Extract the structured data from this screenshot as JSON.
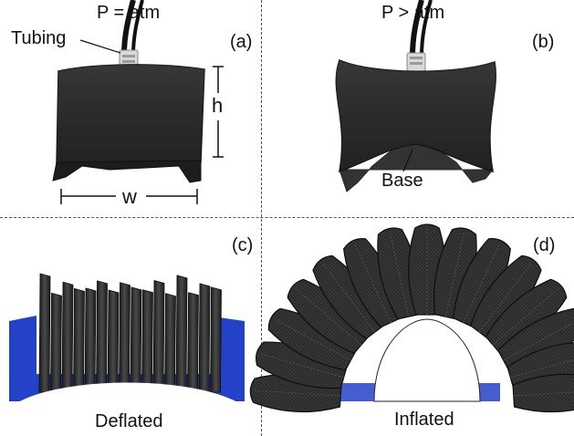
{
  "figure": {
    "panels": [
      {
        "id": "a",
        "tag": "(a)",
        "title": "P = atm"
      },
      {
        "id": "b",
        "tag": "(b)",
        "title": "P > atm"
      },
      {
        "id": "c",
        "tag": "(c)",
        "caption": "Deflated"
      },
      {
        "id": "d",
        "tag": "(d)",
        "caption": "Inflated"
      }
    ],
    "annotations": {
      "tubing": "Tubing",
      "height": "h",
      "width": "w",
      "base": "Base"
    }
  },
  "colors": {
    "fabric": "#2b2b2b",
    "fabric_dark": "#151515",
    "fabric_light": "#4a4a4a",
    "base_blue": "#2342c8",
    "fitting": "#d9d9d9"
  }
}
